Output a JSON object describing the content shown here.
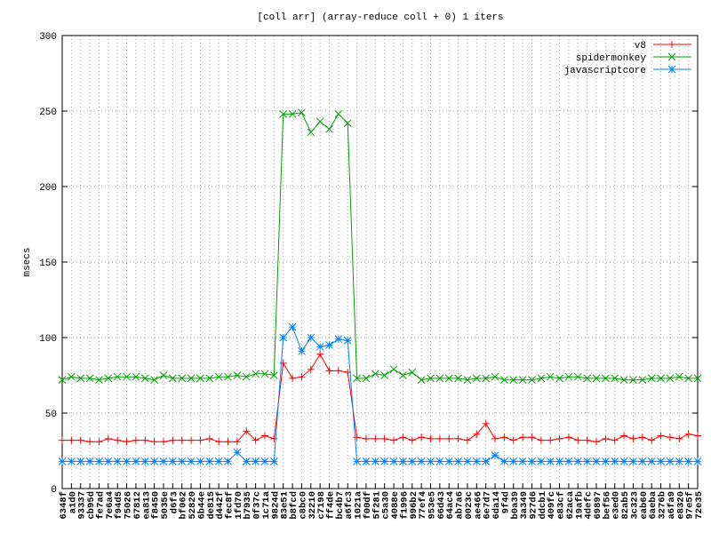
{
  "chart_data": {
    "type": "line",
    "title": "[coll arr] (array-reduce coll + 0) 1 iters",
    "y_label": "msecs",
    "categories": [
      "6348f",
      "a1d0",
      "93337",
      "cb95d",
      "fe7ad",
      "7e6a4",
      "f94d5",
      "75026",
      "67812",
      "ea813",
      "f8450",
      "5035e",
      "d6f3",
      "bf062",
      "52820",
      "6b44e",
      "de815",
      "d442f",
      "fec8f",
      "1fd70",
      "b7935",
      "0f37c",
      "1c71a",
      "9824d",
      "83e51",
      "b8fcd",
      "c8bc0",
      "32210",
      "c7198",
      "ff4de",
      "bc4b7",
      "a6fc3",
      "1021a",
      "f00df",
      "5f281",
      "c5a30",
      "4088e",
      "f1996",
      "996b2",
      "77ef4",
      "953e5",
      "66d43",
      "64ac4",
      "ab7a6",
      "0023c",
      "ae466",
      "6e7d7",
      "6da14",
      "9f4d",
      "b0a39",
      "3a349",
      "927d6",
      "ddcb1",
      "409fc",
      "e83cf",
      "62aca",
      "19afb",
      "4defc",
      "69897",
      "bef56",
      "e3ed0",
      "82ab5",
      "3c323",
      "eab60",
      "6aeba",
      "3276b",
      "a6fa9",
      "e8320",
      "97e5f",
      "72e35"
    ],
    "series": [
      {
        "name": "v8",
        "color": "#ff0000",
        "marker": "plus",
        "values": [
          32,
          32,
          32,
          31,
          31,
          33,
          32,
          31,
          32,
          32,
          31,
          31,
          32,
          32,
          32,
          32,
          33,
          31,
          31,
          31,
          38,
          32,
          35,
          33,
          83,
          73,
          74,
          79,
          89,
          78,
          78,
          77,
          34,
          33,
          33,
          33,
          32,
          34,
          32,
          34,
          33,
          33,
          33,
          33,
          32,
          36,
          43,
          33,
          34,
          32,
          34,
          34,
          32,
          32,
          33,
          34,
          32,
          32,
          31,
          33,
          32,
          35,
          33,
          34,
          32,
          35,
          34,
          33,
          36,
          35
        ]
      },
      {
        "name": "spidermonkey",
        "color": "#00a000",
        "marker": "cross",
        "values": [
          72,
          74,
          73,
          73,
          72,
          73,
          74,
          74,
          74,
          73,
          72,
          75,
          73,
          73,
          73,
          73,
          73,
          74,
          74,
          75,
          74,
          76,
          76,
          75,
          248,
          248,
          249,
          236,
          243,
          238,
          248,
          242,
          73,
          73,
          76,
          75,
          79,
          75,
          77,
          72,
          73,
          73,
          73,
          73,
          72,
          73,
          73,
          74,
          72,
          72,
          72,
          72,
          73,
          74,
          73,
          74,
          74,
          73,
          73,
          73,
          73,
          72,
          72,
          72,
          73,
          73,
          73,
          74,
          73,
          73
        ]
      },
      {
        "name": "javascriptcore",
        "color": "#0080ff",
        "marker": "star",
        "values": [
          18,
          18,
          18,
          18,
          18,
          18,
          18,
          18,
          18,
          18,
          18,
          18,
          18,
          18,
          18,
          18,
          18,
          18,
          18,
          24,
          18,
          18,
          18,
          18,
          100,
          107,
          91,
          100,
          94,
          95,
          99,
          98,
          18,
          18,
          18,
          18,
          18,
          18,
          18,
          18,
          18,
          18,
          18,
          18,
          18,
          18,
          18,
          22,
          18,
          18,
          18,
          18,
          18,
          18,
          18,
          18,
          18,
          18,
          18,
          18,
          18,
          18,
          18,
          18,
          18,
          18,
          18,
          18,
          18,
          18
        ]
      }
    ],
    "ylim": [
      0,
      300
    ],
    "yticks": [
      0,
      50,
      100,
      150,
      200,
      250,
      300
    ],
    "grid": true,
    "legend": "top-right"
  }
}
